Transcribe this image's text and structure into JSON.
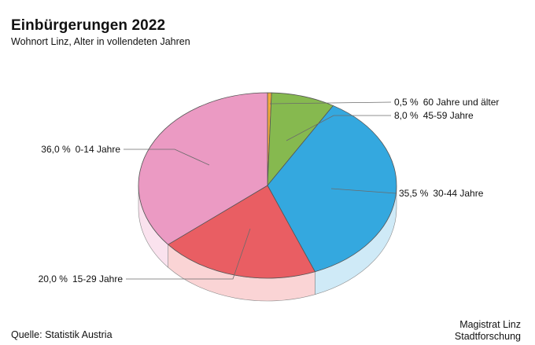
{
  "title": "Einbürgerungen 2022",
  "subtitle": "Wohnort Linz, Alter in vollendeten Jahren",
  "source": "Quelle: Statistik Austria",
  "publisher": [
    "Magistrat Linz",
    "Stadtforschung"
  ],
  "chart_data": {
    "type": "pie",
    "style": "3d-tilted",
    "start_angle_deg": 0,
    "direction": "clockwise",
    "slices": [
      {
        "label": "60 Jahre und älter",
        "value": 0.5,
        "value_text": "0,5 %",
        "color": "#f2a93b",
        "side_color": "#fbe6c4"
      },
      {
        "label": "45-59 Jahre",
        "value": 8.0,
        "value_text": "8,0 %",
        "color": "#86b94f",
        "side_color": "#dcecca"
      },
      {
        "label": "30-44 Jahre",
        "value": 35.5,
        "value_text": "35,5 %",
        "color": "#34a8df",
        "side_color": "#cfeaf7"
      },
      {
        "label": "15-29 Jahre",
        "value": 20.0,
        "value_text": "20,0 %",
        "color": "#e95e63",
        "side_color": "#fad4d5"
      },
      {
        "label": "0-14 Jahre",
        "value": 36.0,
        "value_text": "36,0 %",
        "color": "#eb9ac3",
        "side_color": "#fae2ee"
      }
    ]
  }
}
